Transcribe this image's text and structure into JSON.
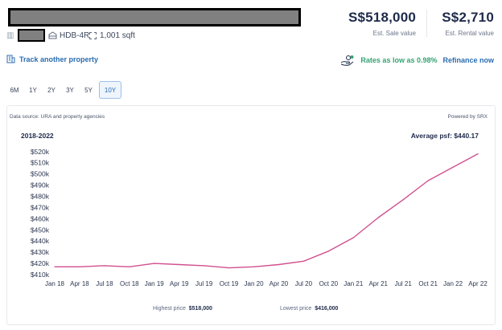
{
  "property": {
    "type": "HDB-4R",
    "size": "1,001 sqft"
  },
  "values": {
    "sale_value": "S$518,000",
    "sale_label": "Est. Sale value",
    "rental_value": "S$2,710",
    "rental_label": "Est. Rental value"
  },
  "actions": {
    "track_label": "Track another property",
    "rates_label": "Rates as low as 0.98%",
    "refinance_label": "Refinance now"
  },
  "periods": [
    "6M",
    "1Y",
    "2Y",
    "3Y",
    "5Y",
    "10Y"
  ],
  "selected_period": "10Y",
  "chart_meta": {
    "source": "Data source: URA and property agencies",
    "powered_by": "Powered by SRX"
  },
  "chart_data": {
    "type": "line",
    "title": "2018-2022",
    "annotation": "Average psf: $440.17",
    "xlabel": "",
    "ylabel": "",
    "x_ticks": [
      "Jan 18",
      "Apr 18",
      "Jul 18",
      "Oct 18",
      "Jan 19",
      "Apr 19",
      "Jul 19",
      "Oct 19",
      "Jan 20",
      "Apr 20",
      "Jul 20",
      "Oct 20",
      "Jan 21",
      "Apr 21",
      "Jul 21",
      "Oct 21",
      "Jan 22",
      "Apr 22"
    ],
    "y_ticks": [
      "$410k",
      "$420k",
      "$430k",
      "$440k",
      "$450k",
      "$460k",
      "$470k",
      "$480k",
      "$490k",
      "$500k",
      "$510k",
      "$520k"
    ],
    "ylim": [
      410000,
      522000
    ],
    "grid": false,
    "line_color": "#d0508f",
    "series": [
      {
        "x": [
          "Jan 18",
          "Apr 18",
          "Jul 18",
          "Oct 18",
          "Jan 19",
          "Apr 19",
          "Jul 19",
          "Oct 19",
          "Jan 20",
          "Apr 20",
          "Jul 20",
          "Oct 20",
          "Jan 21",
          "Apr 21",
          "Jul 21",
          "Oct 21",
          "Jan 22",
          "Apr 22"
        ],
        "values": [
          417000,
          417000,
          418000,
          417000,
          420000,
          419000,
          418000,
          416000,
          417000,
          419000,
          422000,
          431000,
          443000,
          461000,
          477000,
          494000,
          506000,
          518000
        ]
      }
    ]
  },
  "stats": {
    "highest_label": "Highest price",
    "highest_value": "$518,000",
    "lowest_label": "Lowest price",
    "lowest_value": "$416,000"
  }
}
